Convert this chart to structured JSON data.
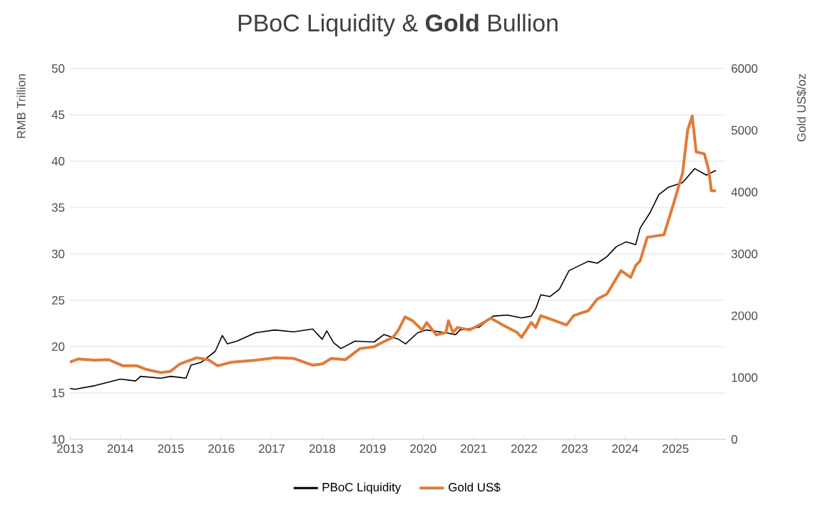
{
  "chart_data": {
    "type": "line",
    "title": "PBoC Liquidity & **Gold** Bullion",
    "ylabel": "RMB Trillion",
    "y2label": "Gold US$/oz",
    "xlim": [
      2013,
      2026
    ],
    "xticks": [
      2013,
      2014,
      2015,
      2016,
      2017,
      2018,
      2019,
      2020,
      2021,
      2022,
      2023,
      2024,
      2025
    ],
    "ylim": [
      10,
      50
    ],
    "yticks": [
      10,
      15,
      20,
      25,
      30,
      35,
      40,
      45,
      50
    ],
    "y2lim": [
      0,
      6000
    ],
    "y2ticks": [
      0,
      1000,
      2000,
      3000,
      4000,
      5000,
      6000
    ],
    "grid": "y",
    "legend": "bottom",
    "series": [
      {
        "name": "PBoC Liquidity",
        "color": "#000000",
        "x": [
          2013.0,
          2013.1,
          2013.5,
          2014.0,
          2014.3,
          2014.4,
          2014.8,
          2015.0,
          2015.3,
          2015.4,
          2015.6,
          2015.88,
          2016.02,
          2016.12,
          2016.31,
          2016.68,
          2017.06,
          2017.43,
          2017.81,
          2018.0,
          2018.09,
          2018.23,
          2018.37,
          2018.65,
          2019.03,
          2019.22,
          2019.51,
          2019.65,
          2019.89,
          2020.07,
          2020.45,
          2020.64,
          2020.73,
          2021.11,
          2021.39,
          2021.67,
          2021.95,
          2022.14,
          2022.23,
          2022.33,
          2022.51,
          2022.7,
          2022.89,
          2023.08,
          2023.27,
          2023.45,
          2023.64,
          2023.83,
          2024.02,
          2024.21,
          2024.3,
          2024.49,
          2024.67,
          2024.86,
          2025.14,
          2025.38,
          2025.61,
          2025.8
        ],
        "values": [
          15.5,
          15.4,
          15.8,
          16.5,
          16.3,
          16.8,
          16.6,
          16.8,
          16.6,
          18.0,
          18.3,
          19.5,
          21.2,
          20.3,
          20.6,
          21.5,
          21.8,
          21.6,
          21.9,
          20.8,
          21.7,
          20.4,
          19.8,
          20.6,
          20.5,
          21.3,
          20.8,
          20.3,
          21.5,
          21.8,
          21.5,
          21.3,
          21.8,
          22.1,
          23.3,
          23.4,
          23.1,
          23.3,
          24.1,
          25.6,
          25.4,
          26.2,
          28.2,
          28.7,
          29.2,
          29.0,
          29.7,
          30.8,
          31.3,
          31.0,
          32.8,
          34.4,
          36.4,
          37.2,
          37.7,
          39.2,
          38.5,
          39.0
        ]
      },
      {
        "name": "Gold US$",
        "color": "#e07b39",
        "axis": "y2",
        "x": [
          2013.0,
          2013.16,
          2013.49,
          2013.77,
          2014.05,
          2014.33,
          2014.52,
          2014.8,
          2014.99,
          2015.18,
          2015.51,
          2015.74,
          2015.93,
          2016.21,
          2016.68,
          2017.06,
          2017.43,
          2017.81,
          2018.0,
          2018.18,
          2018.46,
          2018.75,
          2019.03,
          2019.22,
          2019.4,
          2019.51,
          2019.64,
          2019.79,
          2019.98,
          2020.07,
          2020.26,
          2020.45,
          2020.5,
          2020.59,
          2020.68,
          2020.92,
          2021.11,
          2021.34,
          2021.58,
          2021.86,
          2021.95,
          2022.14,
          2022.23,
          2022.33,
          2022.61,
          2022.84,
          2022.98,
          2023.12,
          2023.27,
          2023.45,
          2023.64,
          2023.92,
          2024.11,
          2024.21,
          2024.3,
          2024.44,
          2024.77,
          2024.96,
          2025.14,
          2025.24,
          2025.33,
          2025.41,
          2025.57,
          2025.66,
          2025.71,
          2025.8
        ],
        "values": [
          1250,
          1300,
          1280,
          1290,
          1190,
          1190,
          1130,
          1080,
          1100,
          1220,
          1320,
          1290,
          1190,
          1250,
          1280,
          1320,
          1310,
          1200,
          1220,
          1310,
          1290,
          1470,
          1500,
          1580,
          1650,
          1770,
          1980,
          1920,
          1770,
          1890,
          1690,
          1730,
          1920,
          1730,
          1810,
          1770,
          1850,
          1960,
          1850,
          1730,
          1650,
          1890,
          1810,
          2000,
          1920,
          1850,
          2000,
          2040,
          2080,
          2270,
          2350,
          2730,
          2620,
          2810,
          2890,
          3270,
          3310,
          3810,
          4310,
          5000,
          5230,
          4650,
          4620,
          4350,
          4020,
          4020
        ]
      }
    ]
  }
}
